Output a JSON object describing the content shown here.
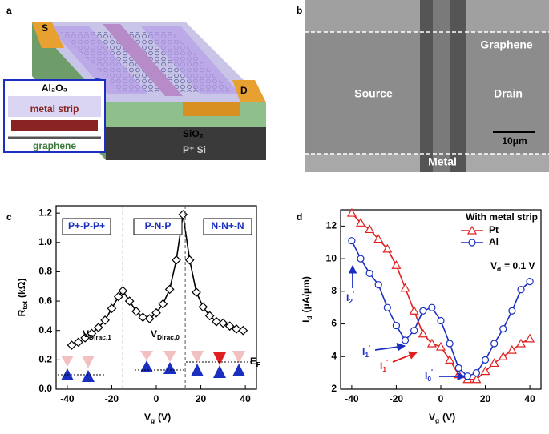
{
  "panel_labels": [
    "a",
    "b",
    "c",
    "d"
  ],
  "schematic": {
    "source": "S",
    "drain": "D",
    "oxide": "Al₂O₃",
    "strip": "metal strip",
    "graphene": "graphene",
    "sio2": "SiO₂",
    "substrate": "P⁺ Si"
  },
  "sem": {
    "top": "Graphene",
    "left": "Source",
    "right": "Drain",
    "bottom": "Metal",
    "scale_bar": "10μm"
  },
  "chart_data": [
    {
      "type": "line",
      "marker": "diamond",
      "color": "#000000",
      "x": [
        -38,
        -35,
        -32,
        -29,
        -26,
        -23,
        -20,
        -17,
        -15,
        -12,
        -9,
        -6,
        -3,
        0,
        3,
        6,
        9,
        12,
        15,
        18,
        21,
        24,
        27,
        30,
        33,
        36,
        39
      ],
      "values": [
        0.3,
        0.32,
        0.35,
        0.38,
        0.42,
        0.47,
        0.55,
        0.63,
        0.67,
        0.6,
        0.53,
        0.49,
        0.48,
        0.52,
        0.58,
        0.68,
        0.88,
        1.19,
        0.88,
        0.66,
        0.56,
        0.5,
        0.46,
        0.45,
        0.43,
        0.41,
        0.4
      ],
      "xlim": [
        -45,
        45
      ],
      "xticks": [
        -40,
        -20,
        0,
        20,
        40
      ],
      "ylim": [
        0,
        1.25
      ],
      "yticks": [
        {
          "value": 0,
          "label": "0.0"
        },
        0.2,
        0.4,
        0.6,
        0.8,
        {
          "value": 1,
          "label": "1.0"
        },
        1.2
      ],
      "x_label": {
        "main": "V",
        "sub": "g",
        "rest": "(V)"
      },
      "y_label": {
        "main": "R",
        "sub": "tot",
        "rest": "(kΩ)"
      },
      "vlines": [
        -15,
        13
      ],
      "regions": [
        "P+-P-P+",
        "P-N-P",
        "N-N+-N"
      ],
      "dirac_labels": [
        {
          "main": "V",
          "sub": "Dirac,1"
        },
        {
          "main": "V",
          "sub": "Dirac,0"
        }
      ],
      "fermi_label": {
        "main": "E",
        "sub": "F"
      }
    },
    {
      "type": "line",
      "x": [
        -40,
        -36,
        -32,
        -28,
        -24,
        -20,
        -16,
        -12,
        -8,
        -4,
        0,
        4,
        8,
        12,
        16,
        20,
        24,
        28,
        32,
        36,
        40
      ],
      "series": [
        {
          "name": "Pt",
          "color": "#e02020",
          "marker": "triangle",
          "values": [
            12.8,
            12.2,
            11.8,
            11.2,
            10.6,
            9.6,
            8.2,
            6.8,
            5.4,
            4.8,
            4.6,
            3.8,
            2.9,
            2.6,
            2.6,
            3.1,
            3.6,
            4.0,
            4.4,
            4.8,
            5.1
          ]
        },
        {
          "name": "Al",
          "color": "#1a2fc0",
          "marker": "circle",
          "values": [
            11.1,
            10.0,
            9.1,
            8.4,
            7.0,
            5.9,
            5.0,
            5.6,
            6.8,
            7.0,
            6.2,
            4.8,
            3.3,
            2.8,
            3.0,
            3.8,
            4.8,
            5.7,
            6.8,
            8.1,
            8.6
          ]
        }
      ],
      "xlim": [
        -45,
        45
      ],
      "xticks": [
        -40,
        -20,
        0,
        20,
        40
      ],
      "ylim": [
        2,
        13
      ],
      "yticks": [
        2,
        4,
        6,
        8,
        10,
        12
      ],
      "x_label": {
        "main": "V",
        "sub": "g",
        "rest": "(V)"
      },
      "y_label": {
        "main": "I",
        "sub": "d",
        "rest": "(μA/μm)"
      },
      "legend_title": "With metal strip",
      "annotation": {
        "main": "V",
        "sub": "d",
        "rest": "= 0.1 V"
      },
      "current_labels": [
        {
          "main": "I",
          "sub": "2",
          "sup": "'"
        },
        {
          "main": "I",
          "sub": "1",
          "sup": "'"
        },
        {
          "main": "I",
          "sub": "1",
          "sup": "'"
        },
        {
          "main": "I",
          "sub": "0",
          "sup": "'"
        }
      ]
    }
  ]
}
